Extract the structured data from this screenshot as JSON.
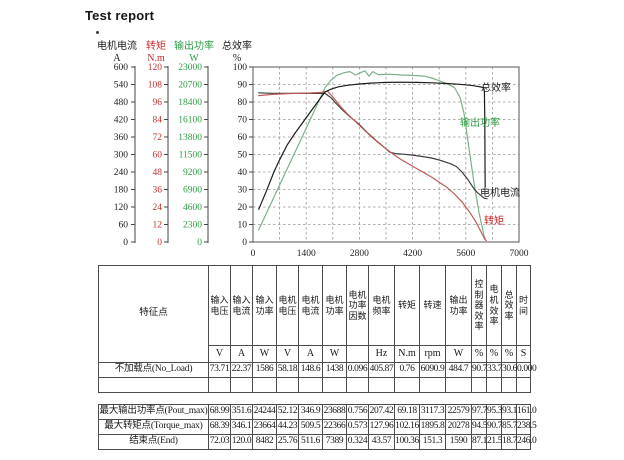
{
  "title": "Test report",
  "chart": {
    "x_axis": {
      "ticks": [
        0,
        1400,
        2800,
        4200,
        5600,
        7000
      ],
      "max": 7000
    },
    "axes": [
      {
        "name": "电机电流",
        "unit": "A",
        "color": "#202020",
        "max": 600,
        "ticks": [
          600,
          540,
          480,
          420,
          360,
          300,
          240,
          180,
          120,
          60,
          0
        ]
      },
      {
        "name": "转矩",
        "unit": "N.m",
        "color": "#c33030",
        "max": 120,
        "ticks": [
          120,
          108,
          96,
          84,
          72,
          60,
          48,
          36,
          24,
          12,
          0
        ]
      },
      {
        "name": "输出功率",
        "unit": "W",
        "color": "#2f9e44",
        "max": 23000,
        "ticks": [
          23000,
          20700,
          18400,
          16100,
          13800,
          11500,
          9200,
          6900,
          4600,
          2300,
          0
        ]
      },
      {
        "name": "总效率",
        "unit": "%",
        "color": "#202020",
        "max": 100,
        "ticks": [
          100,
          90,
          80,
          70,
          60,
          50,
          40,
          30,
          20,
          10,
          0
        ]
      }
    ],
    "curve_labels": [
      {
        "text": "总效率",
        "color": "#1c1c1c",
        "x": 481,
        "y": 91
      },
      {
        "text": "输出功率",
        "color": "#2f9e44",
        "x": 460,
        "y": 126
      },
      {
        "text": "电机电流",
        "color": "#1c1c1c",
        "x": 480,
        "y": 196
      },
      {
        "text": "转矩",
        "color": "#cc2222",
        "x": 484,
        "y": 224
      }
    ]
  },
  "chart_data": {
    "type": "line",
    "xlabel_ticks": [
      0,
      1400,
      2800,
      4200,
      5600,
      7000
    ],
    "x_unit": "rpm",
    "grid": "dashed",
    "series": [
      {
        "name": "output-power",
        "label": "输出功率",
        "unit": "W",
        "axis_max": 23000,
        "color": "#7cb08a",
        "points": [
          [
            151,
            1590
          ],
          [
            350,
            3750
          ],
          [
            550,
            5880
          ],
          [
            700,
            7480
          ],
          [
            900,
            9620
          ],
          [
            1100,
            11750
          ],
          [
            1300,
            13880
          ],
          [
            1500,
            16020
          ],
          [
            1700,
            18160
          ],
          [
            1896,
            20278
          ],
          [
            2050,
            21250
          ],
          [
            2200,
            21900
          ],
          [
            2400,
            22250
          ],
          [
            2550,
            22400
          ],
          [
            2700,
            21950
          ],
          [
            2850,
            22300
          ],
          [
            2950,
            22500
          ],
          [
            3050,
            21800
          ],
          [
            3150,
            22400
          ],
          [
            3300,
            22000
          ],
          [
            3600,
            22050
          ],
          [
            3900,
            21950
          ],
          [
            4200,
            21900
          ],
          [
            4500,
            21800
          ],
          [
            4700,
            21550
          ],
          [
            4900,
            21200
          ],
          [
            5100,
            20800
          ],
          [
            5300,
            20300
          ],
          [
            5450,
            19000
          ],
          [
            5550,
            17000
          ],
          [
            5650,
            13500
          ],
          [
            5750,
            10000
          ],
          [
            5850,
            6700
          ],
          [
            5950,
            3800
          ],
          [
            6030,
            2000
          ],
          [
            6080,
            800
          ],
          [
            6110,
            480
          ]
        ]
      },
      {
        "name": "motor-current",
        "label": "电机电流",
        "unit": "A",
        "axis_max": 600,
        "color": "#3c3c3c",
        "points": [
          [
            151,
            511.6
          ],
          [
            500,
            510
          ],
          [
            1000,
            510
          ],
          [
            1500,
            509.5
          ],
          [
            1896,
            509.5
          ],
          [
            2050,
            495
          ],
          [
            2200,
            473
          ],
          [
            2400,
            447
          ],
          [
            2600,
            424
          ],
          [
            2800,
            403
          ],
          [
            3000,
            376
          ],
          [
            3230,
            349
          ],
          [
            3450,
            325
          ],
          [
            3600,
            308
          ],
          [
            3750,
            303
          ],
          [
            3950,
            301
          ],
          [
            4200,
            298
          ],
          [
            4450,
            293
          ],
          [
            4700,
            288
          ],
          [
            4950,
            279
          ],
          [
            5200,
            268
          ],
          [
            5350,
            259
          ],
          [
            5500,
            240
          ],
          [
            5650,
            215
          ],
          [
            5800,
            186
          ],
          [
            5900,
            170
          ],
          [
            6000,
            159
          ],
          [
            6090,
            150
          ],
          [
            6160,
            148.6
          ]
        ]
      },
      {
        "name": "torque",
        "label": "转矩",
        "unit": "N.m",
        "axis_max": 120,
        "color": "#c05a5a",
        "points": [
          [
            151,
            100.4
          ],
          [
            500,
            101.2
          ],
          [
            1000,
            101.8
          ],
          [
            1500,
            102.2
          ],
          [
            1800,
            102.6
          ],
          [
            1960,
            103.4
          ],
          [
            2100,
            99.5
          ],
          [
            2300,
            93
          ],
          [
            2500,
            87.5
          ],
          [
            2700,
            82.5
          ],
          [
            2900,
            77.5
          ],
          [
            3100,
            72.5
          ],
          [
            3300,
            68
          ],
          [
            3500,
            64
          ],
          [
            3700,
            60
          ],
          [
            3900,
            56.5
          ],
          [
            4100,
            53.5
          ],
          [
            4300,
            50.5
          ],
          [
            4500,
            47.5
          ],
          [
            4700,
            44.5
          ],
          [
            4900,
            41
          ],
          [
            5100,
            37.5
          ],
          [
            5300,
            33
          ],
          [
            5500,
            27.5
          ],
          [
            5700,
            20.5
          ],
          [
            5850,
            14.5
          ],
          [
            5950,
            9.5
          ],
          [
            6050,
            4.5
          ],
          [
            6110,
            1.5
          ],
          [
            6140,
            1
          ]
        ]
      },
      {
        "name": "total-efficiency",
        "label": "总效率",
        "unit": "%",
        "axis_max": 100,
        "color": "#1c1c1c",
        "points": [
          [
            151,
            18.7
          ],
          [
            350,
            29
          ],
          [
            550,
            40
          ],
          [
            700,
            47
          ],
          [
            900,
            55.5
          ],
          [
            1100,
            62
          ],
          [
            1300,
            68
          ],
          [
            1500,
            74
          ],
          [
            1700,
            80
          ],
          [
            1896,
            85.7
          ],
          [
            2050,
            87.3
          ],
          [
            2250,
            88.7
          ],
          [
            2500,
            89.6
          ],
          [
            2800,
            90.3
          ],
          [
            3100,
            90.8
          ],
          [
            3500,
            91.2
          ],
          [
            3900,
            91.3
          ],
          [
            4300,
            91.2
          ],
          [
            4700,
            91
          ],
          [
            5100,
            90.6
          ],
          [
            5400,
            90.2
          ],
          [
            5700,
            89.6
          ],
          [
            5900,
            89
          ],
          [
            6060,
            88.3
          ],
          [
            6090,
            86
          ],
          [
            6100,
            70
          ],
          [
            6105,
            45
          ],
          [
            6110,
            31.5
          ]
        ]
      }
    ]
  },
  "table": {
    "feature_col_header": "特征点",
    "columns": [
      {
        "lines": "输入\n电压",
        "unit": "V"
      },
      {
        "lines": "输入\n电流",
        "unit": "A"
      },
      {
        "lines": "输入\n功率",
        "unit": "W"
      },
      {
        "lines": "电机\n电压",
        "unit": "V"
      },
      {
        "lines": "电机\n电流",
        "unit": "A"
      },
      {
        "lines": "电机\n功率",
        "unit": "W"
      },
      {
        "lines": "电机\n功率\n因数",
        "unit": ""
      },
      {
        "lines": "电机\n频率",
        "unit": "Hz"
      },
      {
        "lines": "转矩",
        "unit": "N.m"
      },
      {
        "lines": "转速",
        "unit": "rpm"
      },
      {
        "lines": "输出\n功率",
        "unit": "W"
      },
      {
        "lines": "控\n制\n器\n效\n率",
        "unit": "%"
      },
      {
        "lines": "电\n机\n效\n率",
        "unit": "%"
      },
      {
        "lines": "总\n效\n率",
        "unit": "%"
      },
      {
        "lines": "时间",
        "unit": "S"
      }
    ],
    "sections": [
      {
        "rows": [
          {
            "label": "不加载点(No_Load)",
            "values": [
              "73.71",
              "22.37",
              "1586",
              "58.18",
              "148.6",
              "1438",
              "0.096",
              "405.87",
              "0.76",
              "6090.9",
              "484.7",
              "90.7",
              "33.7",
              "30.6",
              "0.000"
            ]
          },
          {
            "label": "",
            "values": [
              "",
              "",
              "",
              "",
              "",
              "",
              "",
              "",
              "",
              "",
              "",
              "",
              "",
              "",
              ""
            ]
          }
        ]
      },
      {
        "rows": [
          {
            "label": "最大输出功率点(Pout_max)",
            "values": [
              "68.99",
              "351.6",
              "24244",
              "52.12",
              "346.9",
              "23688",
              "0.756",
              "207.42",
              "69.18",
              "3117.3",
              "22579",
              "97.7",
              "95.3",
              "93.1",
              "161.0"
            ]
          },
          {
            "label": "最大转矩点(Torque_max)",
            "values": [
              "68.39",
              "346.1",
              "23664",
              "44.23",
              "509.5",
              "22366",
              "0.573",
              "127.96",
              "102.16",
              "1895.8",
              "20278",
              "94.5",
              "90.7",
              "85.7",
              "238.5"
            ]
          },
          {
            "label": "结束点(End)",
            "values": [
              "72.03",
              "120.0",
              "8482",
              "25.76",
              "511.6",
              "7389",
              "0.324",
              "43.57",
              "100.36",
              "151.3",
              "1590",
              "87.1",
              "21.5",
              "18.7",
              "246.0"
            ]
          }
        ]
      }
    ]
  }
}
